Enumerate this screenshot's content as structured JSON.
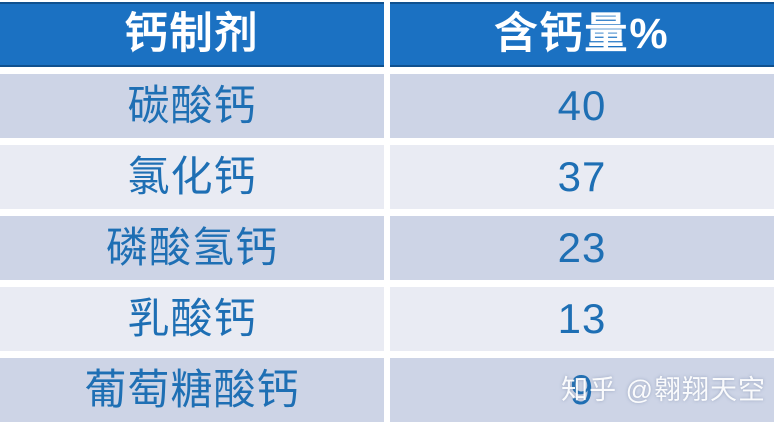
{
  "table": {
    "headers": [
      {
        "label": "钙制剂"
      },
      {
        "label": "含钙量%"
      }
    ],
    "rows": [
      {
        "name": "碳酸钙",
        "value": "40"
      },
      {
        "name": "氯化钙",
        "value": "37"
      },
      {
        "name": "磷酸氢钙",
        "value": "23"
      },
      {
        "name": "乳酸钙",
        "value": "13"
      },
      {
        "name": "葡萄糖酸钙",
        "value": "9"
      }
    ]
  },
  "watermark": {
    "text": "知乎 @翱翔天空"
  },
  "colors": {
    "header_bg": "#1B71C2",
    "header_border": "#10518F",
    "header_text": "#FFFFFF",
    "row_dark": "#CDD4E6",
    "row_light": "#E9EBF3",
    "body_text": "#1E6FB4",
    "background": "#FFFFFF"
  }
}
